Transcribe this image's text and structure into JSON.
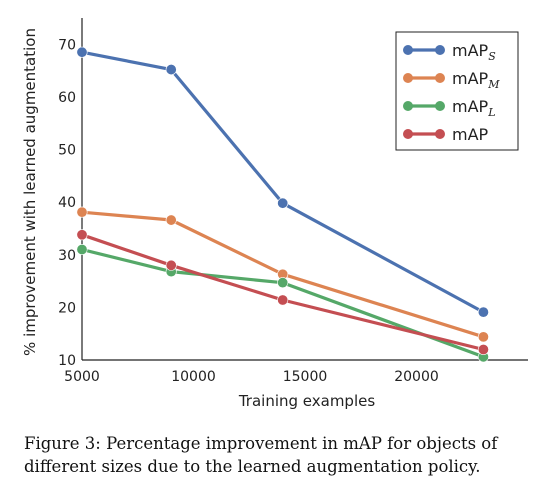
{
  "chart_data": {
    "type": "line",
    "title": "",
    "xlabel": "Training examples",
    "ylabel": "% improvement with learned augmentation",
    "xlim": [
      5000,
      25000
    ],
    "ylim": [
      10,
      75
    ],
    "x_ticks": [
      5000,
      10000,
      15000,
      20000
    ],
    "y_ticks": [
      10,
      20,
      30,
      40,
      50,
      60,
      70
    ],
    "grid": false,
    "legend_position": "top-right",
    "x": [
      5000,
      9000,
      14000,
      23000
    ],
    "series": [
      {
        "name": "mAP",
        "subscript": "S",
        "color": "#4c72b0",
        "values": [
          68.5,
          65.2,
          39.8,
          19.1
        ]
      },
      {
        "name": "mAP",
        "subscript": "M",
        "color": "#dd8452",
        "values": [
          38.1,
          36.6,
          26.3,
          14.4
        ]
      },
      {
        "name": "mAP",
        "subscript": "L",
        "color": "#55a868",
        "values": [
          31.0,
          26.8,
          24.7,
          10.6
        ]
      },
      {
        "name": "mAP",
        "subscript": "",
        "color": "#c44e52",
        "values": [
          33.8,
          28.0,
          21.4,
          12.0
        ]
      }
    ]
  },
  "caption": {
    "label": "Figure 3:",
    "text": "Percentage improvement in mAP for objects of different sizes due to the learned augmentation policy."
  }
}
